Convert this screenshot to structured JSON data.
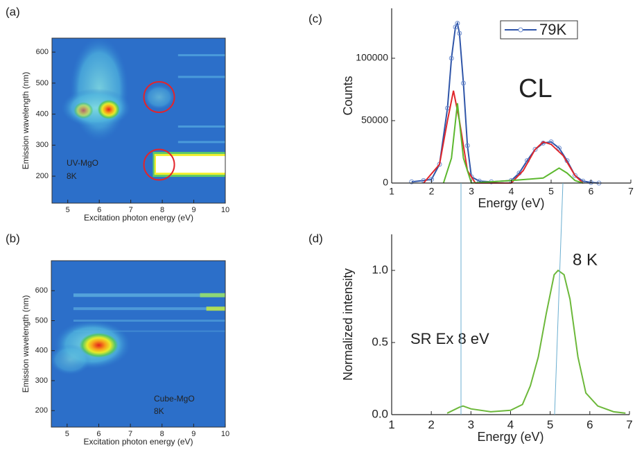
{
  "chart_data": [
    {
      "type": "heatmap",
      "panel_label": "(a)",
      "xlabel": "Excitation photon energy (eV)",
      "ylabel": "Emission wavelength (nm)",
      "xlim": [
        4.5,
        10
      ],
      "ylim": [
        113,
        645
      ],
      "xticks": [
        5,
        6,
        7,
        8,
        9,
        10
      ],
      "yticks": [
        200,
        300,
        400,
        500,
        600
      ],
      "annotations": [
        "UV-MgO",
        "8K"
      ]
    },
    {
      "type": "heatmap",
      "panel_label": "(b)",
      "xlabel": "Excitation photon energy (eV)",
      "ylabel": "Emission wavelength (nm)",
      "xlim": [
        4.5,
        10
      ],
      "ylim": [
        145,
        700
      ],
      "xticks": [
        5,
        6,
        7,
        8,
        9,
        10
      ],
      "yticks": [
        200,
        300,
        400,
        500,
        600
      ],
      "annotations": [
        "Cube-MgO",
        "8K"
      ]
    },
    {
      "type": "line",
      "panel_label": "(c)",
      "xlabel": "Energy (eV)",
      "ylabel": "Counts",
      "xlim": [
        1,
        7
      ],
      "ylim": [
        0,
        140000
      ],
      "xticks": [
        1,
        2,
        3,
        4,
        5,
        6,
        7
      ],
      "yticks": [
        0,
        50000,
        100000
      ],
      "annotations": [
        "CL"
      ],
      "series": [
        {
          "name": "79K",
          "color": "#2f55a8",
          "markers": true,
          "x": [
            1.5,
            1.8,
            2.0,
            2.2,
            2.4,
            2.5,
            2.6,
            2.65,
            2.7,
            2.8,
            2.9,
            3.0,
            3.2,
            3.5,
            4.0,
            4.2,
            4.4,
            4.6,
            4.8,
            5.0,
            5.2,
            5.4,
            5.6,
            5.8,
            6.0,
            6.2
          ],
          "values": [
            1000,
            2000,
            3000,
            15000,
            60000,
            100000,
            125000,
            128000,
            120000,
            80000,
            30000,
            5000,
            1500,
            1000,
            2000,
            8000,
            18000,
            27000,
            32000,
            33000,
            28000,
            18000,
            6000,
            1500,
            500,
            0
          ]
        },
        {
          "color": "#e0262b",
          "x": [
            1.8,
            2.2,
            2.4,
            2.55,
            2.7,
            2.9,
            3.1,
            4.0,
            4.3,
            4.6,
            4.8,
            5.0,
            5.3,
            5.6,
            5.8
          ],
          "values": [
            0,
            15000,
            50000,
            74000,
            50000,
            10000,
            0,
            0,
            10000,
            27000,
            33000,
            31000,
            22000,
            6000,
            0
          ]
        },
        {
          "color": "#5cb82e",
          "x": [
            2.3,
            2.5,
            2.65,
            2.8,
            3.0,
            4.0,
            4.8,
            5.0,
            5.2,
            5.4,
            5.6,
            5.8
          ],
          "values": [
            0,
            20000,
            64000,
            20000,
            0,
            2000,
            4000,
            8000,
            12000,
            8000,
            2000,
            0
          ]
        }
      ]
    },
    {
      "type": "line",
      "panel_label": "(d)",
      "xlabel": "Energy (eV)",
      "ylabel": "Normalized intensity",
      "xlim": [
        1,
        7
      ],
      "ylim": [
        0,
        1.25
      ],
      "xticks": [
        1,
        2,
        3,
        4,
        5,
        6,
        7
      ],
      "yticks": [
        {
          "value": 0,
          "label": "0.0"
        },
        0.5,
        {
          "value": 1,
          "label": "1.0"
        }
      ],
      "annotations": [
        "8 K",
        "SR Ex 8 eV"
      ],
      "series": [
        {
          "color": "#6cb83a",
          "x": [
            2.4,
            2.7,
            2.8,
            3.0,
            3.5,
            4.0,
            4.3,
            4.5,
            4.7,
            4.9,
            5.1,
            5.2,
            5.35,
            5.5,
            5.7,
            5.9,
            6.2,
            6.6,
            6.9
          ],
          "values": [
            0.01,
            0.05,
            0.06,
            0.04,
            0.02,
            0.03,
            0.07,
            0.2,
            0.4,
            0.7,
            0.97,
            1.0,
            0.97,
            0.8,
            0.4,
            0.15,
            0.06,
            0.02,
            0.01
          ]
        }
      ]
    }
  ]
}
